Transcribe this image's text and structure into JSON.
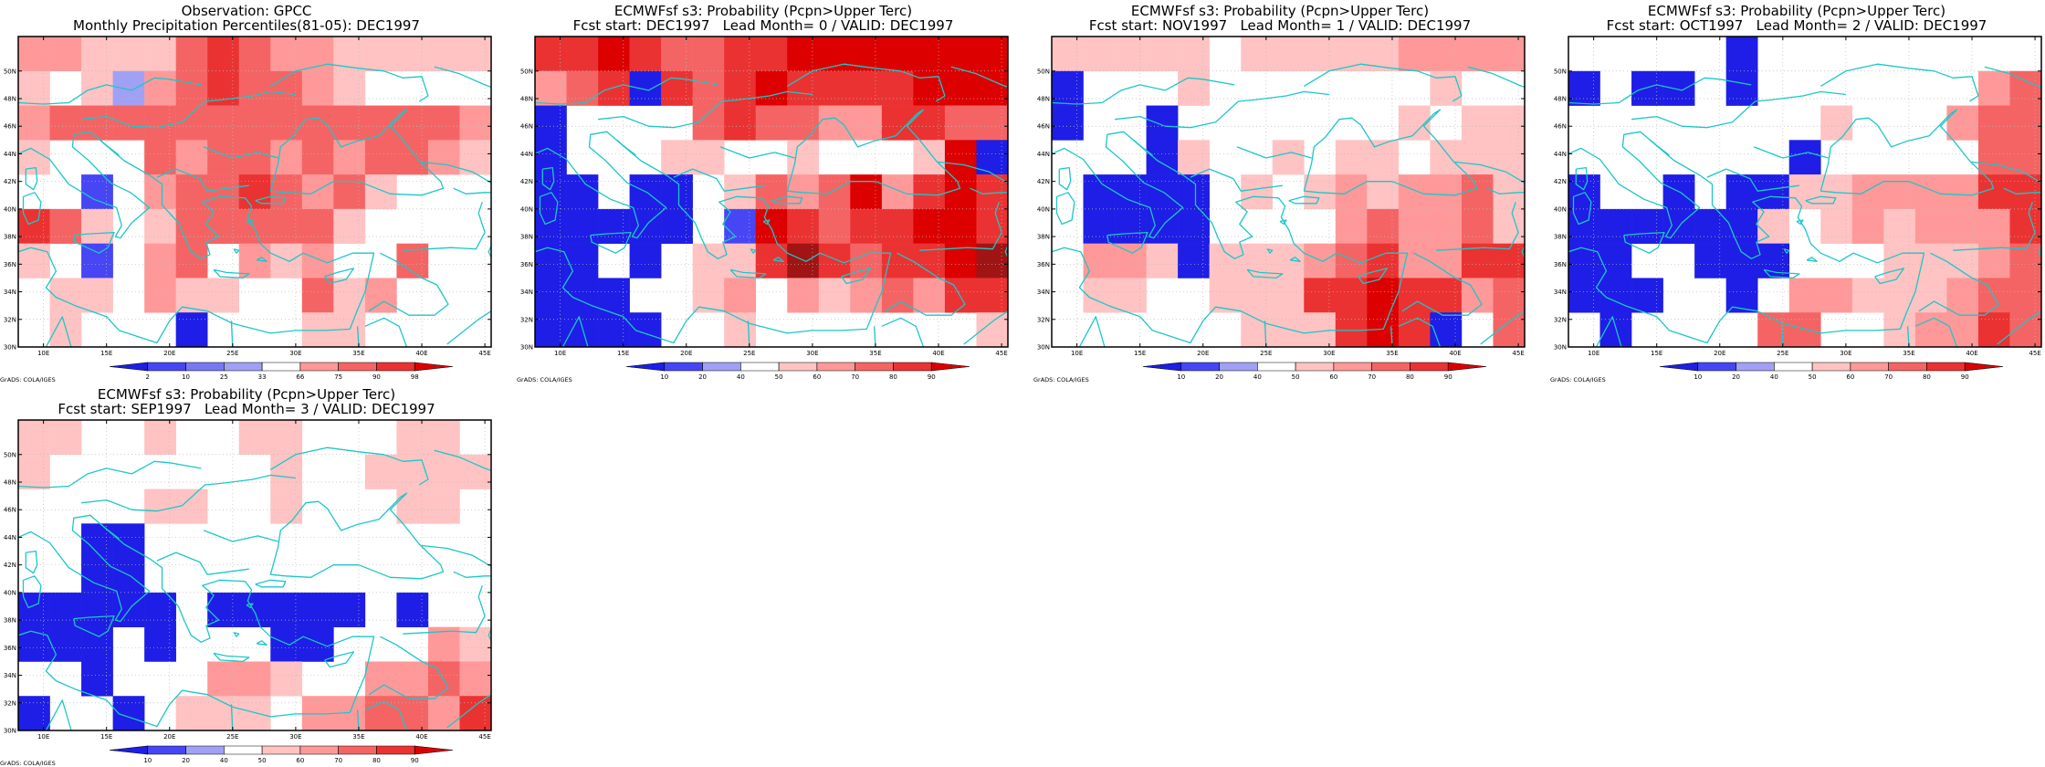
{
  "grid": {
    "lon_start": 8,
    "lon_step": 2.5,
    "nx": 15,
    "lat_start": 30,
    "lat_step": 2.5,
    "ny": 9,
    "lon_ticks": [
      10,
      15,
      20,
      25,
      30,
      35,
      40,
      45
    ],
    "lat_ticks": [
      30,
      32,
      34,
      36,
      38,
      40,
      42,
      44,
      46,
      48,
      50
    ],
    "lon_tick_labels": [
      "10E",
      "15E",
      "20E",
      "25E",
      "30E",
      "35E",
      "40E",
      "45E"
    ],
    "lat_tick_labels": [
      "30N",
      "32N",
      "34N",
      "36N",
      "38N",
      "40N",
      "42N",
      "44N",
      "46N",
      "48N",
      "50N"
    ]
  },
  "credit": "GrADS: COLA/IGES",
  "colors": {
    "white": "#ffffff",
    "coast": "#1cc7c7",
    "b1": "#1e1ee6",
    "b2": "#4646f5",
    "b3": "#a0a0f5",
    "r1": "#ffc3c3",
    "r2": "#ff9999",
    "r3": "#f56464",
    "r4": "#eb3232",
    "r5": "#dc0000",
    "r6": "#a01414"
  },
  "panels": [
    {
      "title": "Observation: GPCC",
      "subtitle": "Monthly Precipitation Percentiles(81-05): DEC1997",
      "legend": {
        "labels": [
          "2",
          "10",
          "25",
          "33",
          "66",
          "75",
          "90",
          "98"
        ],
        "colors": [
          "#1e1ee6",
          "#4646f5",
          "#7878f5",
          "#a0a0f5",
          "#ffffff",
          "#ff9999",
          "#f56464",
          "#eb3232",
          "#dc0000"
        ]
      },
      "cells": [
        "r2 r2 r1 r1 r1 r3 r4 r3 r2 r2 r1 r1 r1 r1 r1",
        "r1 0  r1 b3 r2 r3 r4 r3 r3 r2 r1 0  0  0  0",
        "r2 r3 r3 r3 r3 r3 r3 r3 r3 r3 r3 r3 r3 r3 r2",
        "r1 0  0  0  r3 r2 r3 r3 r2 r3 r2 r3 r3 r2 r1",
        "0  0  b2 0  r2 r3 r3 r4 r3 r2 r3 r1 0  0  0",
        "r4 r3 r1 0  r1 r3 r3 r3 r3 r3 r1 0  0  0  0",
        "r1 0  b2 0  r2 r3 0  r2 r1 r2 0  0  r3 0  0",
        "0  r1 r1 0  r2 r1 r1 0  0  r3 r1 r2 0  0  0",
        "0  r1 0  0  0  b1 0  0  0  r1 r1 0  0  0  0"
      ]
    },
    {
      "title": "ECMWFsf s3: Probability (Pcpn>Upper Terc)",
      "subtitle": "Fcst start: DEC1997   Lead Month= 0 / VALID: DEC1997",
      "legend": {
        "labels": [
          "10",
          "20",
          "40",
          "50",
          "60",
          "70",
          "80",
          "90"
        ],
        "colors": [
          "#1e1ee6",
          "#4646f5",
          "#a0a0f5",
          "#ffffff",
          "#ffc3c3",
          "#ff9999",
          "#f56464",
          "#eb3232",
          "#dc0000"
        ]
      },
      "cells": [
        "r4 r4 r5 r4 r3 r3 r4 r4 r5 r5 r5 r5 r5 r5 r5",
        "r2 r3 r4 b1 r4 r3 r4 r5 r4 r4 r4 r4 r5 r5 r5",
        "b1 0  0  0  0  r3 r4 r3 r3 r2 r2 r4 r4 r3 r3",
        "b1 0  0  0  r1 r1 0  0  r1 0  0  0  r1 r5 b1",
        "b1 b1 0  b1 b1 0  r1 r3 r2 r3 r5 r2 r4 r5 r4",
        "b1 b1 b1 b1 b1 0  b2 r5 r4 r3 r4 r4 r5 r5 r4",
        "b1 b1 0  b1 0  r1 r1 r4 r6 r4 r3 r4 r4 r5 r6",
        "b1 b1 b1 0  0  r1 r2 0  r2 r1 r2 r3 r2 r4 r4",
        "b1 b1 b1 b1 0  0  r1 0  0  0  0  0  0  0  r1"
      ]
    },
    {
      "title": "ECMWFsf s3: Probability (Pcpn>Upper Terc)",
      "subtitle": "Fcst start: NOV1997   Lead Month= 1 / VALID: DEC1997",
      "legend": {
        "labels": [
          "10",
          "20",
          "40",
          "50",
          "60",
          "70",
          "80",
          "90"
        ],
        "colors": [
          "#1e1ee6",
          "#4646f5",
          "#a0a0f5",
          "#ffffff",
          "#ffc3c3",
          "#ff9999",
          "#f56464",
          "#eb3232",
          "#dc0000"
        ]
      },
      "cells": [
        "r1 r1 r1 r1 r1 0  r1 r1 r1 r1 r1 r2 r2 r2 r2",
        "b1 0  0  0  r1 0  0  0  0  0  0  0  r1 0  0",
        "b1 0  0  b1 0  0  0  0  0  0  0  r1 0  r1 r1",
        "0  0  0  b1 r1 0  0  r1 0  r1 r1 0  r1 r1 r1",
        "0  b1 b1 b1 b1 0  r1 0  r1 r2 r1 r2 r2 r3 r1",
        "0  b1 b1 b1 b1 0  0  0  0  r2 r3 r2 r2 r3 r1",
        "0  r2 r2 r1 b1 r1 r1 r1 r2 r3 r4 r2 r2 r4 r4",
        "0  r1 r1 0  0  r1 r1 r1 r4 r4 r5 r4 r4 r2 r3",
        "0  0  0  0  0  0  r1 r1 r1 r4 r5 r4 b1 0  r3"
      ]
    },
    {
      "title": "ECMWFsf s3: Probability (Pcpn>Upper Terc)",
      "subtitle": "Fcst start: OCT1997   Lead Month= 2 / VALID: DEC1997",
      "legend": {
        "labels": [
          "10",
          "20",
          "40",
          "50",
          "60",
          "70",
          "80",
          "90"
        ],
        "colors": [
          "#1e1ee6",
          "#4646f5",
          "#a0a0f5",
          "#ffffff",
          "#ffc3c3",
          "#ff9999",
          "#f56464",
          "#eb3232",
          "#dc0000"
        ]
      },
      "cells": [
        "0  0  0  0  0  b1 0  0  0  0  0  0  0  0  0",
        "b1 0  b1 b1 0  b1 0  0  0  0  0  0  0  r2 r3",
        "0  0  0  0  0  0  0  0  r1 0  0  0  r2 r3 r3",
        "0  0  0  0  0  0  0  b1 0  0  0  0  0  r3 r3",
        "b1 0  0  b1 0  b1 b1 r1 r1 r2 r2 r2 r2 r4 r4",
        "b1 b1 b1 b1 b1 b1 r1 0  r1 r2 r1 r2 r2 r2 r4",
        "b1 b1 0  0  b1 b1 b1 0  0  0  r1 r1 r1 r2 r3",
        "b1 b1 b1 0  0  b1 0  r2 r2 r1 r1 r1 r2 r3 r3",
        "0  b1 0  0  0  0  r3 r3 0  0  r1 r2 r2 r4 r3"
      ]
    },
    {
      "title": "ECMWFsf s3: Probability (Pcpn>Upper Terc)",
      "subtitle": "Fcst start: SEP1997   Lead Month= 3 / VALID: DEC1997",
      "legend": {
        "labels": [
          "10",
          "20",
          "40",
          "50",
          "60",
          "70",
          "80",
          "90"
        ],
        "colors": [
          "#1e1ee6",
          "#4646f5",
          "#a0a0f5",
          "#ffffff",
          "#ffc3c3",
          "#ff9999",
          "#f56464",
          "#eb3232",
          "#dc0000"
        ]
      },
      "cells": [
        "r1 r1 0  0  r1 0  0  r1 r1 0  0  0  r1 r1 0",
        "r1 0  0  0  0  0  0  0  r1 0  0  r1 r1 r1 r1",
        "0  0  0  0  r1 r1 0  0  r1 0  0  0  r1 r1 0",
        "0  0  b1 b1 0  0  0  0  0  0  0  0  0  0  0",
        "0  0  b1 b1 0  0  0  0  0  0  0  0  0  0  0",
        "b1 b1 b1 b1 b1 0  b1 b1 b1 b1 b1 0  b1 0  0",
        "b1 b1 b1 0  b1 0  0  0  b1 b1 0  0  0  r2 r1",
        "0  0  b1 0  0  0  r2 r2 r1 0  0  r2 r2 r3 r2",
        "b1 0  0  b1 0  r1 r1 r1 0  r2 r2 r3 r3 r2 r4"
      ]
    }
  ]
}
